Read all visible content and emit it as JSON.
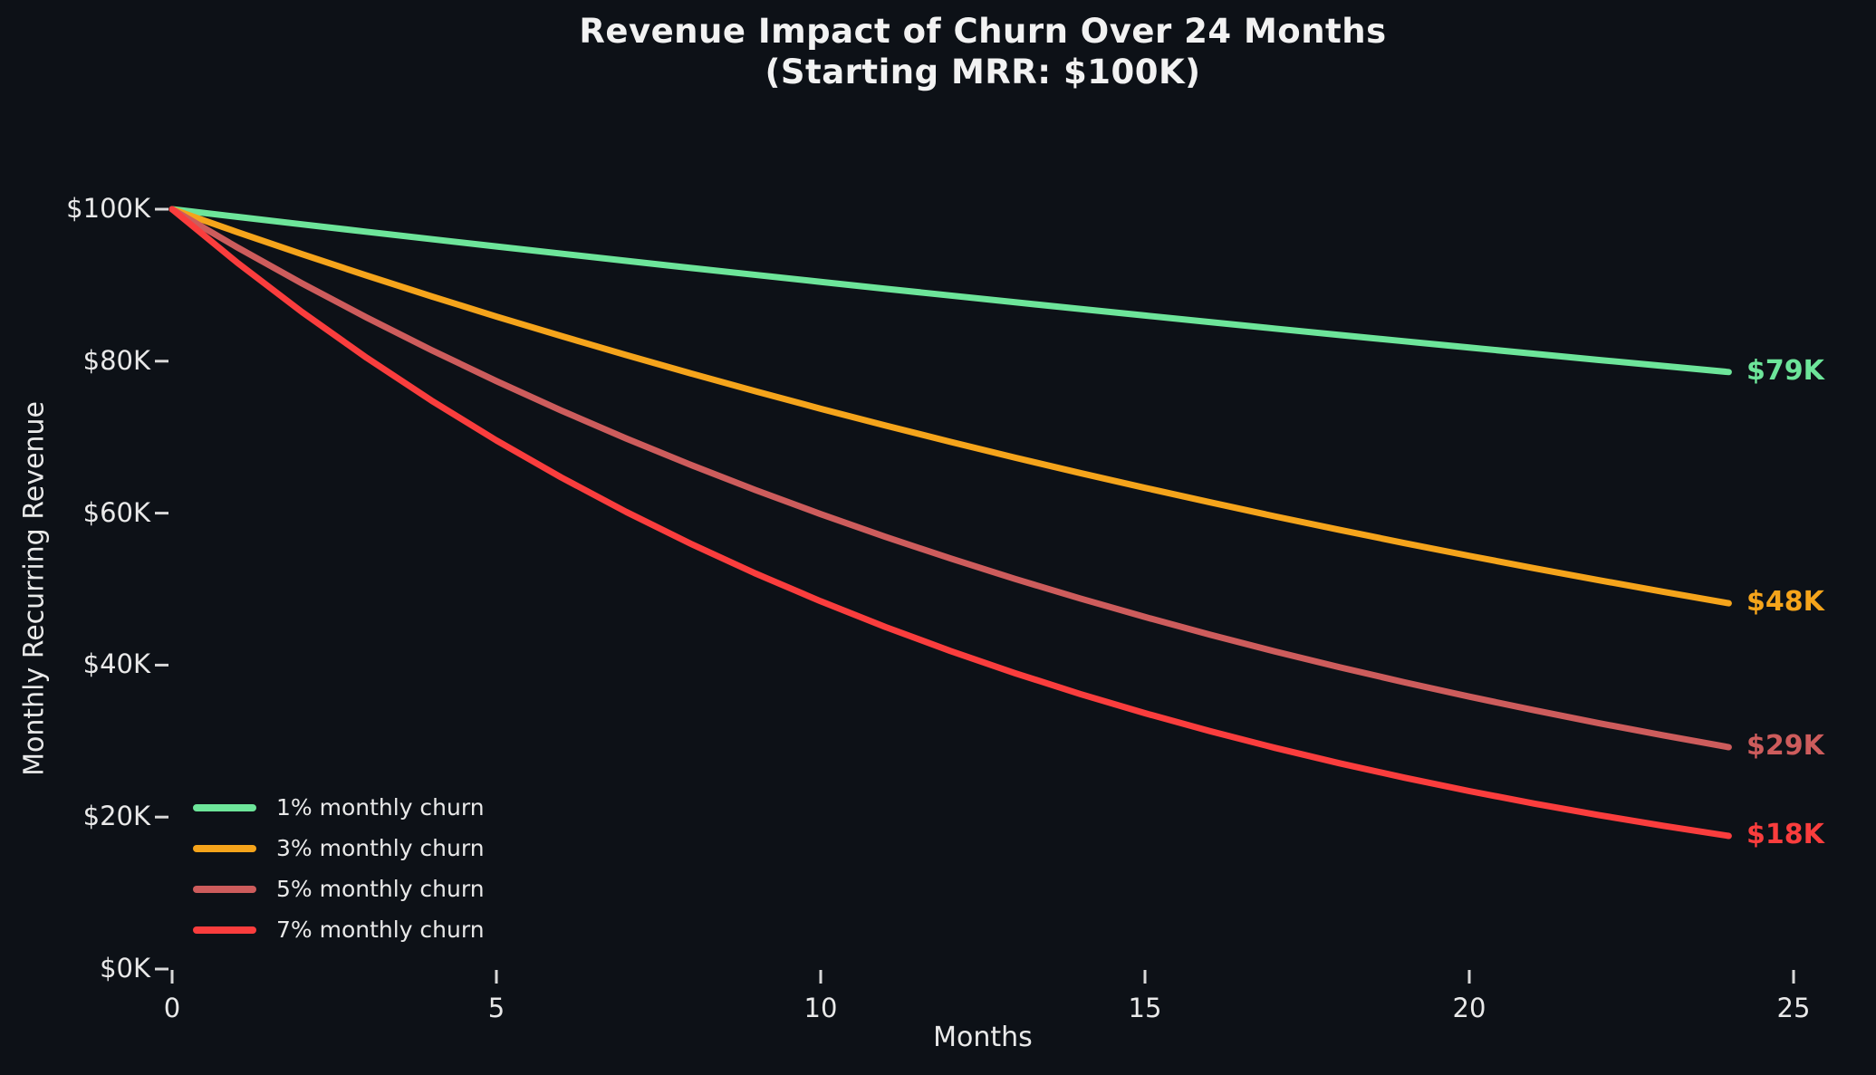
{
  "colors": {
    "background": "#0d1117",
    "text": "#e9e9e9",
    "title_text": "#f2f2f2",
    "tick_mark": "#d9d9d9"
  },
  "title": {
    "line1": "Revenue Impact of Churn Over 24 Months",
    "line2": "(Starting MRR: $100K)"
  },
  "axes": {
    "x_label": "Months",
    "y_label": "Monthly Recurring Revenue"
  },
  "chart_data": {
    "type": "line",
    "title": "Revenue Impact of Churn Over 24 Months (Starting MRR: $100K)",
    "xlabel": "Months",
    "ylabel": "Monthly Recurring Revenue",
    "xlim": [
      0,
      25
    ],
    "ylim": [
      0,
      100
    ],
    "grid": false,
    "legend_position": "lower-left",
    "x_ticks": [
      {
        "value": 0,
        "label": "0"
      },
      {
        "value": 5,
        "label": "5"
      },
      {
        "value": 10,
        "label": "10"
      },
      {
        "value": 15,
        "label": "15"
      },
      {
        "value": 20,
        "label": "20"
      },
      {
        "value": 25,
        "label": "25"
      }
    ],
    "y_ticks": [
      {
        "value": 0,
        "label": "$0K"
      },
      {
        "value": 20,
        "label": "$20K"
      },
      {
        "value": 40,
        "label": "$40K"
      },
      {
        "value": 60,
        "label": "$60K"
      },
      {
        "value": 80,
        "label": "$80K"
      },
      {
        "value": 100,
        "label": "$100K"
      }
    ],
    "x": [
      0,
      1,
      2,
      3,
      4,
      5,
      6,
      7,
      8,
      9,
      10,
      11,
      12,
      13,
      14,
      15,
      16,
      17,
      18,
      19,
      20,
      21,
      22,
      23,
      24
    ],
    "series": [
      {
        "name": "1% monthly churn",
        "color": "#6de59a",
        "end_label": "$79K",
        "values": [
          100,
          99,
          98.01,
          97.03,
          96.06,
          95.1,
          94.15,
          93.21,
          92.27,
          91.35,
          90.44,
          89.53,
          88.64,
          87.75,
          86.87,
          86.01,
          85.15,
          84.29,
          83.45,
          82.62,
          81.79,
          80.97,
          80.16,
          79.36,
          78.57
        ]
      },
      {
        "name": "3% monthly churn",
        "color": "#f5a41b",
        "end_label": "$48K",
        "values": [
          100,
          97,
          94.09,
          91.27,
          88.53,
          85.87,
          83.31,
          80.81,
          78.38,
          76.03,
          73.74,
          71.53,
          69.38,
          67.3,
          65.28,
          63.33,
          61.43,
          59.58,
          57.8,
          56.06,
          54.38,
          52.75,
          51.17,
          49.63,
          48.14
        ]
      },
      {
        "name": "5% monthly churn",
        "color": "#cd5c5c",
        "end_label": "$29K",
        "values": [
          100,
          95,
          90.25,
          85.74,
          81.45,
          77.38,
          73.51,
          69.83,
          66.34,
          63.02,
          59.87,
          56.88,
          54.04,
          51.33,
          48.77,
          46.33,
          44.01,
          41.81,
          39.72,
          37.74,
          35.85,
          34.06,
          32.35,
          30.74,
          29.2
        ]
      },
      {
        "name": "7% monthly churn",
        "color": "#fa3d3d",
        "end_label": "$18K",
        "values": [
          100,
          93,
          86.49,
          80.44,
          74.81,
          69.57,
          64.7,
          60.17,
          55.96,
          52.04,
          48.4,
          45.01,
          41.86,
          38.93,
          36.2,
          33.67,
          31.31,
          29.12,
          27.08,
          25.19,
          23.42,
          21.78,
          20.26,
          18.84,
          17.52
        ]
      }
    ]
  }
}
